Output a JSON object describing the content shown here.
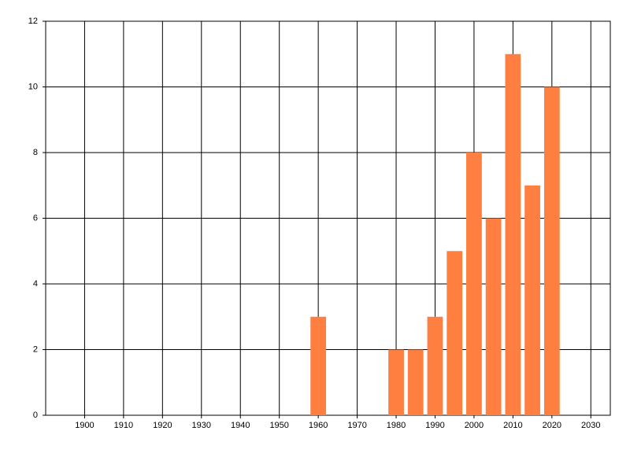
{
  "chart_data": {
    "type": "bar",
    "x": [
      1960,
      1980,
      1985,
      1990,
      1995,
      2000,
      2005,
      2010,
      2015,
      2020
    ],
    "values": [
      3,
      2,
      2,
      3,
      5,
      8,
      6,
      11,
      7,
      10
    ],
    "color": "#ff7f40",
    "xlim": [
      1890,
      2035
    ],
    "xticks": [
      1900,
      1910,
      1920,
      1930,
      1940,
      1950,
      1960,
      1970,
      1980,
      1990,
      2000,
      2010,
      2020,
      2030
    ],
    "ylim": [
      0,
      12
    ],
    "yticks": [
      0,
      2,
      4,
      6,
      8,
      10,
      12
    ],
    "grid": true
  }
}
